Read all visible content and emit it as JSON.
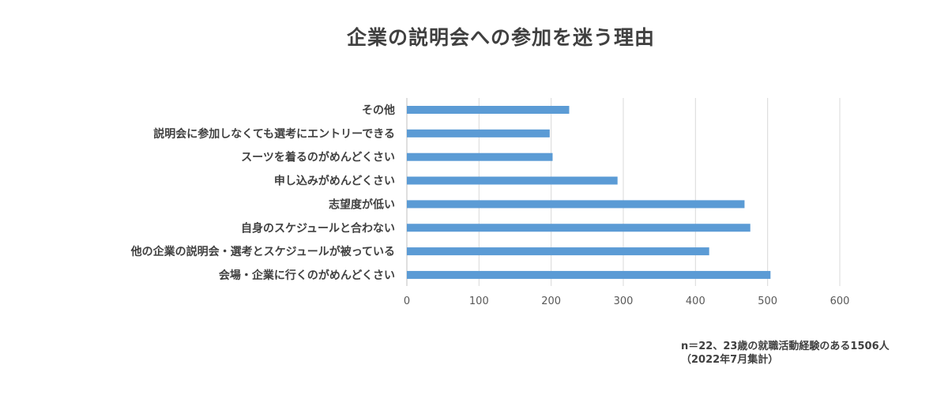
{
  "chart_data": {
    "type": "bar",
    "orientation": "horizontal",
    "title": "企業の説明会への参加を迷う理由",
    "categories": [
      "その他",
      "説明会に参加しなくても選考にエントリーできる",
      "スーツを着るのがめんどくさい",
      "申し込みがめんどくさい",
      "志望度が低い",
      "自身のスケジュールと合わない",
      "他の企業の説明会・選考とスケジュールが被っている",
      "会場・企業に行くのがめんどくさい"
    ],
    "values": [
      225,
      198,
      202,
      292,
      468,
      476,
      419,
      504
    ],
    "xlim": [
      0,
      600
    ],
    "xticks": [
      "0",
      "100",
      "200",
      "300",
      "400",
      "500",
      "600"
    ],
    "grid": true,
    "bar_color": "#5b9bd5",
    "note_lines": [
      "n＝22、23歳の就職活動経験のある1506人",
      "（2022年7月集計）"
    ]
  }
}
